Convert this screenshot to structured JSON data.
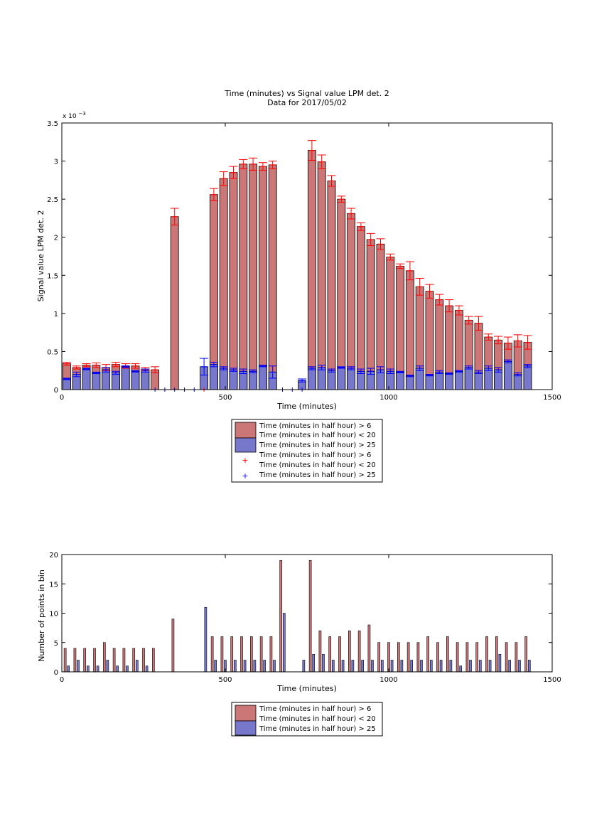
{
  "chart_data": [
    {
      "type": "bar",
      "title": "Time (minutes) vs Signal value LPM det. 2",
      "subtitle": "Data for 2017/05/02",
      "xlabel": "Time (minutes)",
      "ylabel": "Signal value LPM det. 2",
      "y_exponent_base": "x 10",
      "y_exponent_power": "−3",
      "xlim": [
        0,
        1500
      ],
      "ylim": [
        0,
        3.5
      ],
      "xticks": [
        "0",
        "500",
        "1000",
        "1500"
      ],
      "yticks": [
        "0",
        "0.5",
        "1",
        "1.5",
        "2",
        "2.5",
        "3",
        "3.5"
      ],
      "grid": false,
      "legend_position": "below",
      "legend": [
        {
          "line1": "Time (minutes in half hour) > 6",
          "line2": "Time (minutes in half hour) < 20",
          "line3": "Time (minutes in half hour) > 25",
          "kind": "bar",
          "color": "#cc7777"
        },
        {
          "line1": "",
          "line2": "",
          "line3": "",
          "kind": "bar",
          "color": "#7777cc"
        },
        {
          "line1": "Time (minutes in half hour) > 6",
          "line2": "Time (minutes in half hour) < 20",
          "line3": "Time (minutes in half hour) > 25",
          "kind": "marker",
          "color_red": "#ff0000",
          "color_blue": "#0000ff"
        }
      ],
      "x": [
        15,
        45,
        75,
        105,
        135,
        165,
        195,
        225,
        255,
        285,
        345,
        435,
        465,
        495,
        525,
        555,
        585,
        615,
        645,
        675,
        735,
        765,
        795,
        825,
        855,
        885,
        915,
        945,
        975,
        1005,
        1035,
        1065,
        1095,
        1125,
        1155,
        1185,
        1215,
        1245,
        1275,
        1305,
        1335,
        1365,
        1395,
        1425
      ],
      "series": [
        {
          "name": "Time (minutes in half hour) > 6",
          "color": "#cc7777",
          "values": [
            0.34,
            0.29,
            0.32,
            0.32,
            0.29,
            0.33,
            0.31,
            0.31,
            0.27,
            0.26,
            2.27,
            null,
            2.56,
            2.77,
            2.85,
            2.96,
            2.96,
            2.93,
            2.95,
            null,
            null,
            3.14,
            2.99,
            2.74,
            2.5,
            2.31,
            2.14,
            1.97,
            1.91,
            1.74,
            1.62,
            1.56,
            1.35,
            1.29,
            1.18,
            1.1,
            1.04,
            0.91,
            0.87,
            0.69,
            0.65,
            0.61,
            0.64,
            0.62
          ],
          "errors": [
            0.02,
            0.02,
            0.02,
            0.03,
            0.04,
            0.03,
            0.03,
            0.03,
            0.02,
            0.04,
            0.11,
            null,
            0.08,
            0.09,
            0.08,
            0.06,
            0.08,
            0.05,
            0.05,
            null,
            null,
            0.13,
            0.09,
            0.07,
            0.04,
            0.07,
            0.05,
            0.08,
            0.07,
            0.04,
            0.03,
            0.12,
            0.11,
            0.09,
            0.07,
            0.08,
            0.06,
            0.05,
            0.09,
            0.04,
            0.05,
            0.08,
            0.08,
            0.09
          ]
        },
        {
          "name": "Time (minutes in half hour) > 25",
          "color": "#7777cc",
          "values": [
            0.14,
            0.2,
            0.27,
            0.22,
            0.26,
            0.22,
            0.3,
            0.24,
            0.25,
            null,
            null,
            0.3,
            0.33,
            0.28,
            0.26,
            0.24,
            0.24,
            0.31,
            0.23,
            null,
            0.12,
            0.28,
            0.29,
            0.25,
            0.29,
            0.28,
            0.24,
            0.24,
            0.26,
            0.24,
            0.23,
            0.18,
            0.28,
            0.19,
            0.23,
            0.21,
            0.24,
            0.29,
            0.23,
            0.28,
            0.26,
            0.37,
            0.2,
            0.31
          ],
          "errors": [
            0.01,
            0.03,
            0.01,
            0.01,
            0.03,
            0.02,
            0.01,
            0.01,
            0.02,
            null,
            null,
            0.11,
            0.03,
            0.02,
            0.02,
            0.03,
            0.02,
            0.01,
            0.08,
            null,
            0.02,
            0.02,
            0.03,
            0.02,
            0.01,
            0.02,
            0.03,
            0.04,
            0.04,
            0.03,
            0.01,
            0.01,
            0.03,
            0.01,
            0.02,
            0.01,
            0.01,
            0.02,
            0.02,
            0.03,
            0.03,
            0.02,
            0.02,
            0.02
          ]
        }
      ],
      "markers": {
        "red_plus_at_zero_x": [
          435
        ],
        "blue_plus_at_zero_x": [
          285,
          315,
          345,
          375,
          405,
          675,
          705,
          735
        ]
      }
    },
    {
      "type": "bar",
      "title": "",
      "xlabel": "Time (minutes)",
      "ylabel": "Number of points in bin",
      "xlim": [
        0,
        1500
      ],
      "ylim": [
        0,
        20
      ],
      "xticks": [
        "0",
        "500",
        "1000",
        "1500"
      ],
      "yticks": [
        "0",
        "5",
        "10",
        "15",
        "20"
      ],
      "grid": false,
      "legend_position": "below",
      "legend": [
        {
          "line1": "Time (minutes in half hour) > 6",
          "line2": "Time (minutes in half hour) < 20",
          "line3": "Time (minutes in half hour) > 25",
          "kind": "bar",
          "color": "#cc7777"
        },
        {
          "line1": "",
          "line2": "",
          "line3": "",
          "kind": "bar",
          "color": "#7777cc"
        }
      ],
      "x": [
        15,
        45,
        75,
        105,
        135,
        165,
        195,
        225,
        255,
        285,
        345,
        435,
        465,
        495,
        525,
        555,
        585,
        615,
        645,
        675,
        735,
        765,
        795,
        825,
        855,
        885,
        915,
        945,
        975,
        1005,
        1035,
        1065,
        1095,
        1125,
        1155,
        1185,
        1215,
        1245,
        1275,
        1305,
        1335,
        1365,
        1395,
        1425
      ],
      "series": [
        {
          "name": "Time (minutes in half hour) > 6",
          "color": "#cc7777",
          "values": [
            4,
            4,
            4,
            4,
            5,
            4,
            4,
            4,
            4,
            4,
            9,
            null,
            6,
            6,
            6,
            6,
            6,
            6,
            6,
            19,
            null,
            19,
            7,
            6,
            6,
            7,
            7,
            8,
            5,
            5,
            5,
            5,
            5,
            6,
            5,
            6,
            5,
            5,
            5,
            6,
            6,
            5,
            5,
            6
          ]
        },
        {
          "name": "Time (minutes in half hour) > 25",
          "color": "#7777cc",
          "values": [
            1,
            2,
            1,
            1,
            2,
            1,
            1,
            2,
            1,
            null,
            null,
            11,
            2,
            2,
            2,
            2,
            2,
            2,
            2,
            10,
            2,
            3,
            3,
            2,
            2,
            2,
            2,
            2,
            2,
            2,
            2,
            2,
            2,
            2,
            2,
            2,
            1,
            2,
            2,
            2,
            3,
            2,
            2,
            2
          ]
        }
      ]
    }
  ]
}
